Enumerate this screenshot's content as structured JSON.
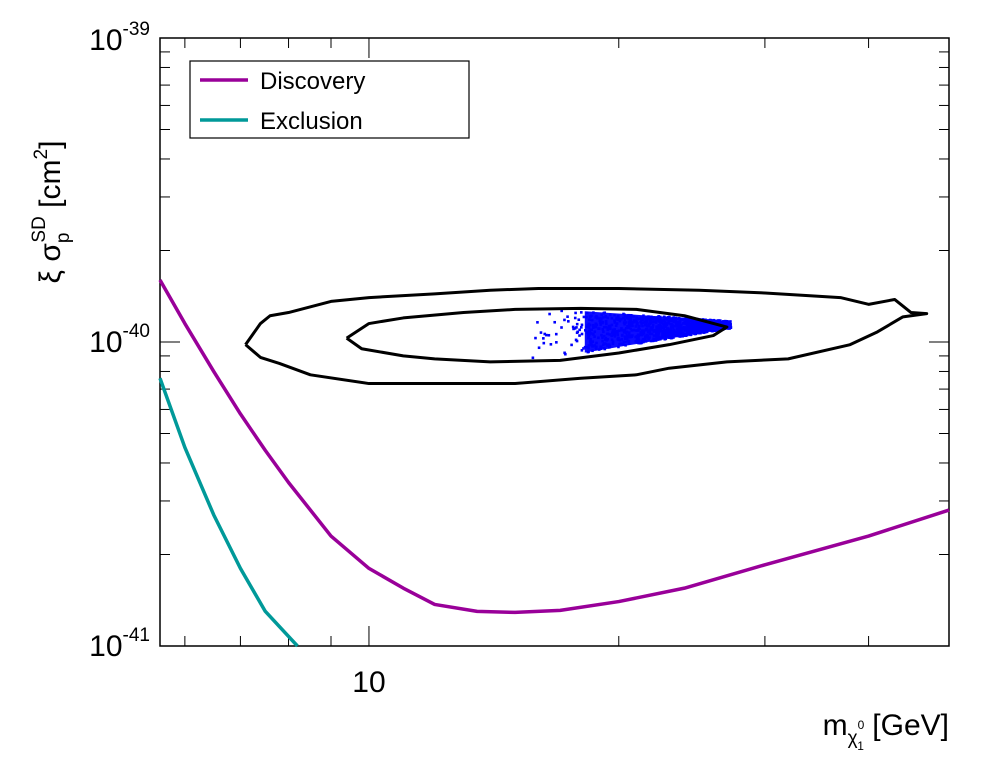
{
  "chart_data": {
    "type": "line",
    "title": "",
    "xlabel_parts": {
      "main": "m",
      "sub1": "χ",
      "sup": "0",
      "sub2": "1",
      "unit": "[GeV]"
    },
    "ylabel_parts": {
      "greek1": "ξ",
      "greek2": "σ",
      "sub": "p",
      "sup": "SD",
      "unit_pre": "[cm",
      "unit_sup": "2",
      "unit_post": "]"
    },
    "x_scale": "log",
    "y_scale": "log",
    "xlim": [
      5.6,
      50
    ],
    "ylim": [
      1e-41,
      1e-39
    ],
    "x_tick_labels": [
      {
        "value": 10,
        "text": "10"
      }
    ],
    "y_tick_labels": [
      {
        "value": 1e-41,
        "base": "10",
        "exp": "-41"
      },
      {
        "value": 1e-40,
        "base": "10",
        "exp": "-40"
      },
      {
        "value": 1e-39,
        "base": "10",
        "exp": "-39"
      }
    ],
    "legend": {
      "position": "top-left",
      "entries": [
        "Discovery",
        "Exclusion"
      ]
    },
    "series": [
      {
        "name": "Discovery",
        "color": "#990099",
        "points": [
          [
            5.6,
            1.6e-40
          ],
          [
            6.0,
            1.15e-40
          ],
          [
            6.5,
            8e-41
          ],
          [
            7.0,
            5.8e-41
          ],
          [
            7.5,
            4.4e-41
          ],
          [
            8.0,
            3.45e-41
          ],
          [
            9.0,
            2.3e-41
          ],
          [
            10.0,
            1.8e-41
          ],
          [
            11.0,
            1.55e-41
          ],
          [
            12.0,
            1.37e-41
          ],
          [
            13.5,
            1.3e-41
          ],
          [
            15.0,
            1.29e-41
          ],
          [
            17.0,
            1.31e-41
          ],
          [
            20.0,
            1.4e-41
          ],
          [
            24.0,
            1.55e-41
          ],
          [
            30.0,
            1.85e-41
          ],
          [
            40.0,
            2.3e-41
          ],
          [
            50.0,
            2.8e-41
          ]
        ]
      },
      {
        "name": "Exclusion",
        "color": "#009999",
        "points": [
          [
            5.6,
            7.6e-41
          ],
          [
            6.0,
            4.5e-41
          ],
          [
            6.5,
            2.7e-41
          ],
          [
            7.0,
            1.8e-41
          ],
          [
            7.5,
            1.3e-41
          ],
          [
            8.2,
            1e-41
          ]
        ]
      }
    ],
    "contours": [
      {
        "label": "outer",
        "color": "#000000",
        "points": [
          [
            7.1,
            9.8e-41
          ],
          [
            7.4,
            1.15e-40
          ],
          [
            7.6,
            1.22e-40
          ],
          [
            8.0,
            1.25e-40
          ],
          [
            9.0,
            1.36e-40
          ],
          [
            10.0,
            1.4e-40
          ],
          [
            12.0,
            1.44e-40
          ],
          [
            14.0,
            1.48e-40
          ],
          [
            16.0,
            1.5e-40
          ],
          [
            20.0,
            1.5e-40
          ],
          [
            25.0,
            1.48e-40
          ],
          [
            30.0,
            1.45e-40
          ],
          [
            34.0,
            1.42e-40
          ],
          [
            37.0,
            1.4e-40
          ],
          [
            40.0,
            1.33e-40
          ],
          [
            43.0,
            1.38e-40
          ],
          [
            45.0,
            1.25e-40
          ],
          [
            47.0,
            1.24e-40
          ],
          [
            44.0,
            1.21e-40
          ],
          [
            41.0,
            1.08e-40
          ],
          [
            38.0,
            9.8e-41
          ],
          [
            32.0,
            8.8e-41
          ],
          [
            27.0,
            8.6e-41
          ],
          [
            23.0,
            8.2e-41
          ],
          [
            21.0,
            7.8e-41
          ],
          [
            18.0,
            7.6e-41
          ],
          [
            15.0,
            7.3e-41
          ],
          [
            13.0,
            7.3e-41
          ],
          [
            10.0,
            7.3e-41
          ],
          [
            8.5,
            7.8e-41
          ],
          [
            7.8,
            8.5e-41
          ],
          [
            7.4,
            8.9e-41
          ],
          [
            7.1,
            9.8e-41
          ]
        ]
      },
      {
        "label": "inner",
        "color": "#000000",
        "points": [
          [
            9.4,
            1.03e-40
          ],
          [
            10.0,
            1.15e-40
          ],
          [
            11.0,
            1.2e-40
          ],
          [
            13.0,
            1.25e-40
          ],
          [
            15.0,
            1.28e-40
          ],
          [
            18.0,
            1.29e-40
          ],
          [
            21.0,
            1.28e-40
          ],
          [
            24.0,
            1.22e-40
          ],
          [
            27.0,
            1.12e-40
          ],
          [
            26.0,
            1.05e-40
          ],
          [
            23.0,
            9.8e-41
          ],
          [
            20.0,
            9.2e-41
          ],
          [
            17.0,
            8.7e-41
          ],
          [
            14.0,
            8.6e-41
          ],
          [
            12.0,
            8.8e-41
          ],
          [
            11.0,
            9e-41
          ],
          [
            9.8,
            9.5e-41
          ],
          [
            9.4,
            1.03e-40
          ]
        ]
      }
    ],
    "scatter": {
      "name": "points",
      "color": "#0000ff",
      "region": {
        "x_start": 15.6,
        "x_dense_start": 18.2,
        "x_end": 27.3,
        "y_top_at_start": 1.3e-40,
        "y_bottom_at_start": 8.6e-41,
        "y_top_at_end": 1.17e-40,
        "y_bottom_at_end": 1.11e-40
      }
    }
  }
}
